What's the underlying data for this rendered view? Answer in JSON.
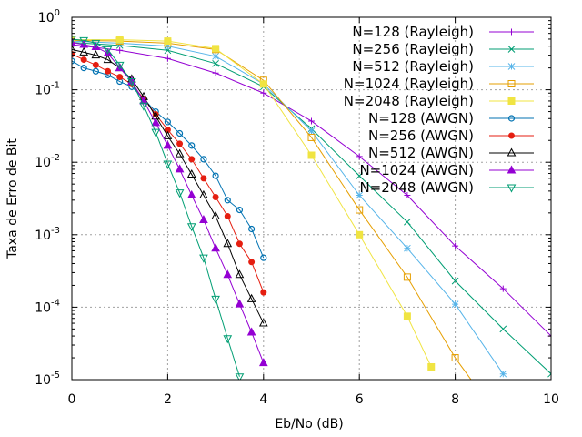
{
  "chart_data": {
    "type": "line",
    "title": "",
    "xlabel": "Eb/No (dB)",
    "ylabel": "Taxa de Erro de Bit",
    "xlim": [
      0,
      10
    ],
    "ylim": [
      1e-05,
      1
    ],
    "yscale": "log",
    "grid": true,
    "legend_position": "top-right",
    "x_ticks": [
      {
        "value": 0,
        "label": "0"
      },
      {
        "value": 2,
        "label": "2"
      },
      {
        "value": 4,
        "label": "4"
      },
      {
        "value": 6,
        "label": "6"
      },
      {
        "value": 8,
        "label": "8"
      },
      {
        "value": 10,
        "label": "10"
      }
    ],
    "y_ticks": [
      {
        "value": 1,
        "mantissa": "10",
        "exponent": "0"
      },
      {
        "value": 0.1,
        "mantissa": "10",
        "exponent": "-1"
      },
      {
        "value": 0.01,
        "mantissa": "10",
        "exponent": "-2"
      },
      {
        "value": 0.001,
        "mantissa": "10",
        "exponent": "-3"
      },
      {
        "value": 0.0001,
        "mantissa": "10",
        "exponent": "-4"
      },
      {
        "value": 1e-05,
        "mantissa": "10",
        "exponent": "-5"
      }
    ],
    "series": [
      {
        "name": "N=128 (Rayleigh)",
        "color": "#9400d3",
        "marker": "plus",
        "points": [
          [
            0,
            0.42
          ],
          [
            1,
            0.35
          ],
          [
            2,
            0.27
          ],
          [
            3,
            0.17
          ],
          [
            4,
            0.09
          ],
          [
            5,
            0.037
          ],
          [
            6,
            0.012
          ],
          [
            7,
            0.0035
          ],
          [
            8,
            0.0007
          ],
          [
            9,
            0.00018
          ],
          [
            10,
            4e-05
          ]
        ]
      },
      {
        "name": "N=256 (Rayleigh)",
        "color": "#009e73",
        "marker": "cross",
        "points": [
          [
            0,
            0.45
          ],
          [
            1,
            0.41
          ],
          [
            2,
            0.35
          ],
          [
            3,
            0.23
          ],
          [
            4,
            0.11
          ],
          [
            5,
            0.029
          ],
          [
            6,
            0.0065
          ],
          [
            7,
            0.0015
          ],
          [
            8,
            0.00023
          ],
          [
            9,
            5e-05
          ],
          [
            10,
            1.2e-05
          ]
        ]
      },
      {
        "name": "N=512 (Rayleigh)",
        "color": "#56b4e9",
        "marker": "star",
        "points": [
          [
            0,
            0.47
          ],
          [
            1,
            0.44
          ],
          [
            2,
            0.4
          ],
          [
            3,
            0.29
          ],
          [
            4,
            0.12
          ],
          [
            5,
            0.027
          ],
          [
            6,
            0.0035
          ],
          [
            7,
            0.00065
          ],
          [
            8,
            0.00011
          ],
          [
            9,
            1.2e-05
          ]
        ]
      },
      {
        "name": "N=1024 (Rayleigh)",
        "color": "#e69f00",
        "marker": "box",
        "points": [
          [
            0,
            0.48
          ],
          [
            1,
            0.47
          ],
          [
            2,
            0.44
          ],
          [
            3,
            0.36
          ],
          [
            4,
            0.135
          ],
          [
            5,
            0.022
          ],
          [
            6,
            0.0022
          ],
          [
            7,
            0.00026
          ],
          [
            8,
            2e-05
          ],
          [
            8.5,
            7e-06
          ]
        ]
      },
      {
        "name": "N=2048 (Rayleigh)",
        "color": "#f0e442",
        "marker": "filled-box",
        "points": [
          [
            0,
            0.49
          ],
          [
            1,
            0.49
          ],
          [
            2,
            0.47
          ],
          [
            3,
            0.37
          ],
          [
            4,
            0.12
          ],
          [
            5,
            0.0125
          ],
          [
            6,
            0.001
          ],
          [
            7,
            7.5e-05
          ],
          [
            7.5,
            1.5e-05
          ]
        ]
      },
      {
        "name": "N=128 (AWGN)",
        "color": "#0072b2",
        "marker": "circle",
        "points": [
          [
            0,
            0.25
          ],
          [
            0.25,
            0.2
          ],
          [
            0.5,
            0.18
          ],
          [
            0.75,
            0.16
          ],
          [
            1,
            0.13
          ],
          [
            1.25,
            0.11
          ],
          [
            1.5,
            0.075
          ],
          [
            1.75,
            0.05
          ],
          [
            2,
            0.036
          ],
          [
            2.25,
            0.025
          ],
          [
            2.5,
            0.017
          ],
          [
            2.75,
            0.011
          ],
          [
            3,
            0.0065
          ],
          [
            3.25,
            0.003
          ],
          [
            3.5,
            0.0022
          ],
          [
            3.75,
            0.0012
          ],
          [
            4,
            0.00048
          ]
        ]
      },
      {
        "name": "N=256 (AWGN)",
        "color": "#e51e10",
        "marker": "filled-circle",
        "points": [
          [
            0,
            0.31
          ],
          [
            0.25,
            0.26
          ],
          [
            0.5,
            0.22
          ],
          [
            0.75,
            0.18
          ],
          [
            1,
            0.15
          ],
          [
            1.25,
            0.12
          ],
          [
            1.5,
            0.075
          ],
          [
            1.75,
            0.046
          ],
          [
            2,
            0.028
          ],
          [
            2.25,
            0.018
          ],
          [
            2.5,
            0.011
          ],
          [
            2.75,
            0.006
          ],
          [
            3,
            0.0033
          ],
          [
            3.25,
            0.0018
          ],
          [
            3.5,
            0.00075
          ],
          [
            3.75,
            0.00042
          ],
          [
            4,
            0.00016
          ]
        ]
      },
      {
        "name": "N=512 (AWGN)",
        "color": "#000000",
        "marker": "triangle",
        "points": [
          [
            0,
            0.36
          ],
          [
            0.25,
            0.33
          ],
          [
            0.5,
            0.3
          ],
          [
            0.75,
            0.26
          ],
          [
            1,
            0.2
          ],
          [
            1.25,
            0.14
          ],
          [
            1.5,
            0.08
          ],
          [
            1.75,
            0.043
          ],
          [
            2,
            0.023
          ],
          [
            2.25,
            0.013
          ],
          [
            2.5,
            0.0068
          ],
          [
            2.75,
            0.0035
          ],
          [
            3,
            0.0018
          ],
          [
            3.25,
            0.00075
          ],
          [
            3.5,
            0.00028
          ],
          [
            3.75,
            0.00013
          ],
          [
            4,
            6e-05
          ]
        ]
      },
      {
        "name": "N=1024 (AWGN)",
        "color": "#9400d3",
        "marker": "filled-triangle",
        "points": [
          [
            0,
            0.45
          ],
          [
            0.25,
            0.42
          ],
          [
            0.5,
            0.39
          ],
          [
            0.75,
            0.32
          ],
          [
            1,
            0.2
          ],
          [
            1.25,
            0.13
          ],
          [
            1.5,
            0.07
          ],
          [
            1.75,
            0.035
          ],
          [
            2,
            0.017
          ],
          [
            2.25,
            0.008
          ],
          [
            2.5,
            0.0035
          ],
          [
            2.75,
            0.0016
          ],
          [
            3,
            0.00065
          ],
          [
            3.25,
            0.00028
          ],
          [
            3.5,
            0.00011
          ],
          [
            3.75,
            4.5e-05
          ],
          [
            4,
            1.7e-05
          ]
        ]
      },
      {
        "name": "N=2048 (AWGN)",
        "color": "#009e73",
        "marker": "inverted-triangle",
        "points": [
          [
            0,
            0.5
          ],
          [
            0.25,
            0.48
          ],
          [
            0.5,
            0.44
          ],
          [
            0.75,
            0.36
          ],
          [
            1,
            0.22
          ],
          [
            1.25,
            0.13
          ],
          [
            1.5,
            0.06
          ],
          [
            1.75,
            0.026
          ],
          [
            2,
            0.0095
          ],
          [
            2.25,
            0.0038
          ],
          [
            2.5,
            0.0013
          ],
          [
            2.75,
            0.00048
          ],
          [
            3,
            0.00013
          ],
          [
            3.25,
            3.7e-05
          ],
          [
            3.5,
            1.1e-05
          ]
        ]
      }
    ]
  }
}
